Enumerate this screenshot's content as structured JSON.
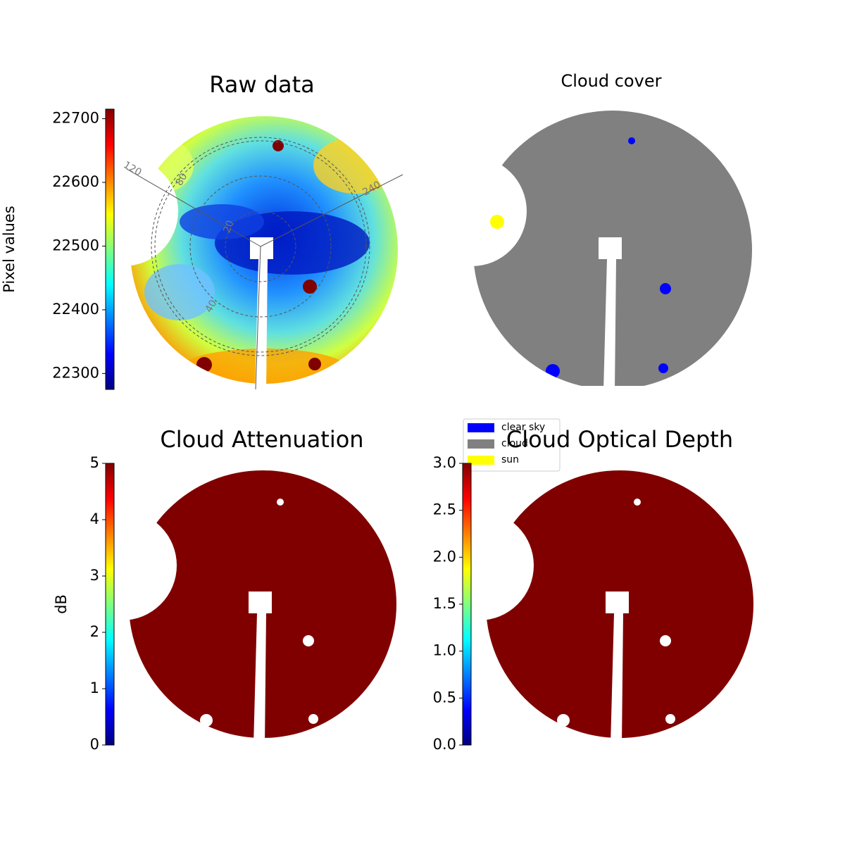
{
  "chart_data": [
    {
      "type": "image",
      "title": "Raw data",
      "colormap": "jet",
      "colorbar_label": "Pixel values",
      "ylim": [
        22275,
        22715
      ],
      "yticks": [
        22300,
        22400,
        22500,
        22600,
        22700
      ],
      "polar_labels": [
        "120",
        "80",
        "20",
        "40",
        "240"
      ]
    },
    {
      "type": "image",
      "title": "Cloud cover",
      "legend": [
        {
          "name": "clear sky",
          "color": "#0000ff"
        },
        {
          "name": "cloud",
          "color": "#808080"
        },
        {
          "name": "sun",
          "color": "#ffff00"
        }
      ]
    },
    {
      "type": "image",
      "title": "Cloud Attenuation",
      "colormap": "jet",
      "colorbar_label": "dB",
      "ylim": [
        0,
        5
      ],
      "yticks": [
        0,
        1,
        2,
        3,
        4,
        5
      ]
    },
    {
      "type": "image",
      "title": "Cloud Optical Depth",
      "colormap": "jet",
      "ylim": [
        0,
        3
      ],
      "yticks": [
        {
          "value": 0,
          "label": "0.0"
        },
        0.5,
        {
          "value": 1,
          "label": "1.0"
        },
        1.5,
        {
          "value": 2,
          "label": "2.0"
        },
        2.5,
        {
          "value": 3,
          "label": "3.0"
        }
      ]
    }
  ]
}
